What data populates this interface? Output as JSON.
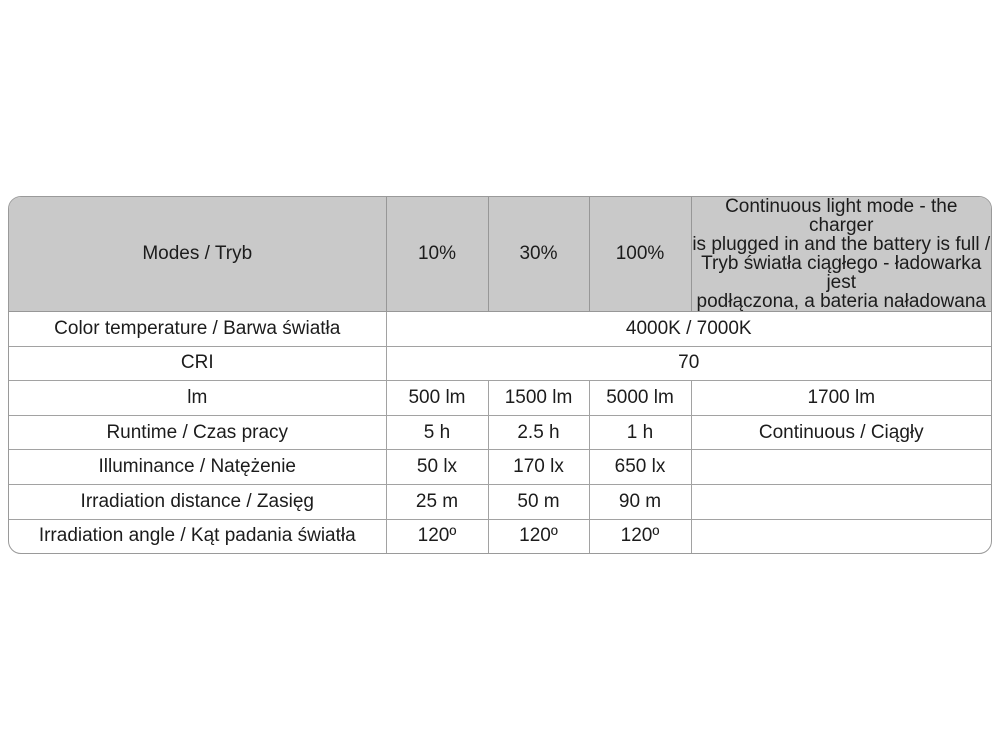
{
  "page": {
    "background_color": "#ffffff"
  },
  "table": {
    "style": {
      "header_bg": "#c9c9c9",
      "border_color": "#9a9a9a",
      "text_color": "#1c1c1c",
      "body_bg": "#ffffff"
    },
    "header": {
      "modes_label": "Modes / Tryb",
      "mode_cols": [
        "10%",
        "30%",
        "100%"
      ],
      "continuous_lines": [
        "Continuous light mode - the charger",
        "is plugged in and the battery is full /",
        "Tryb światła ciągłego - ładowarka jest",
        "podłączona, a bateria naładowana"
      ]
    },
    "rows": [
      {
        "label": "Color temperature / Barwa światła",
        "span_value": "4000K / 7000K"
      },
      {
        "label": "CRI",
        "span_value": "70"
      },
      {
        "label": "lm",
        "values": [
          "500 lm",
          "1500 lm",
          "5000 lm",
          "1700 lm"
        ]
      },
      {
        "label": "Runtime / Czas pracy",
        "values": [
          "5 h",
          "2.5 h",
          "1 h",
          "Continuous / Ciągły"
        ]
      },
      {
        "label": "Illuminance / Natężenie",
        "values": [
          "50 lx",
          "170 lx",
          "650 lx",
          ""
        ]
      },
      {
        "label": "Irradiation distance / Zasięg",
        "values": [
          "25 m",
          "50 m",
          "90 m",
          ""
        ]
      },
      {
        "label": "Irradiation angle / Kąt padania światła",
        "values": [
          "120º",
          "120º",
          "120º",
          ""
        ]
      }
    ]
  }
}
